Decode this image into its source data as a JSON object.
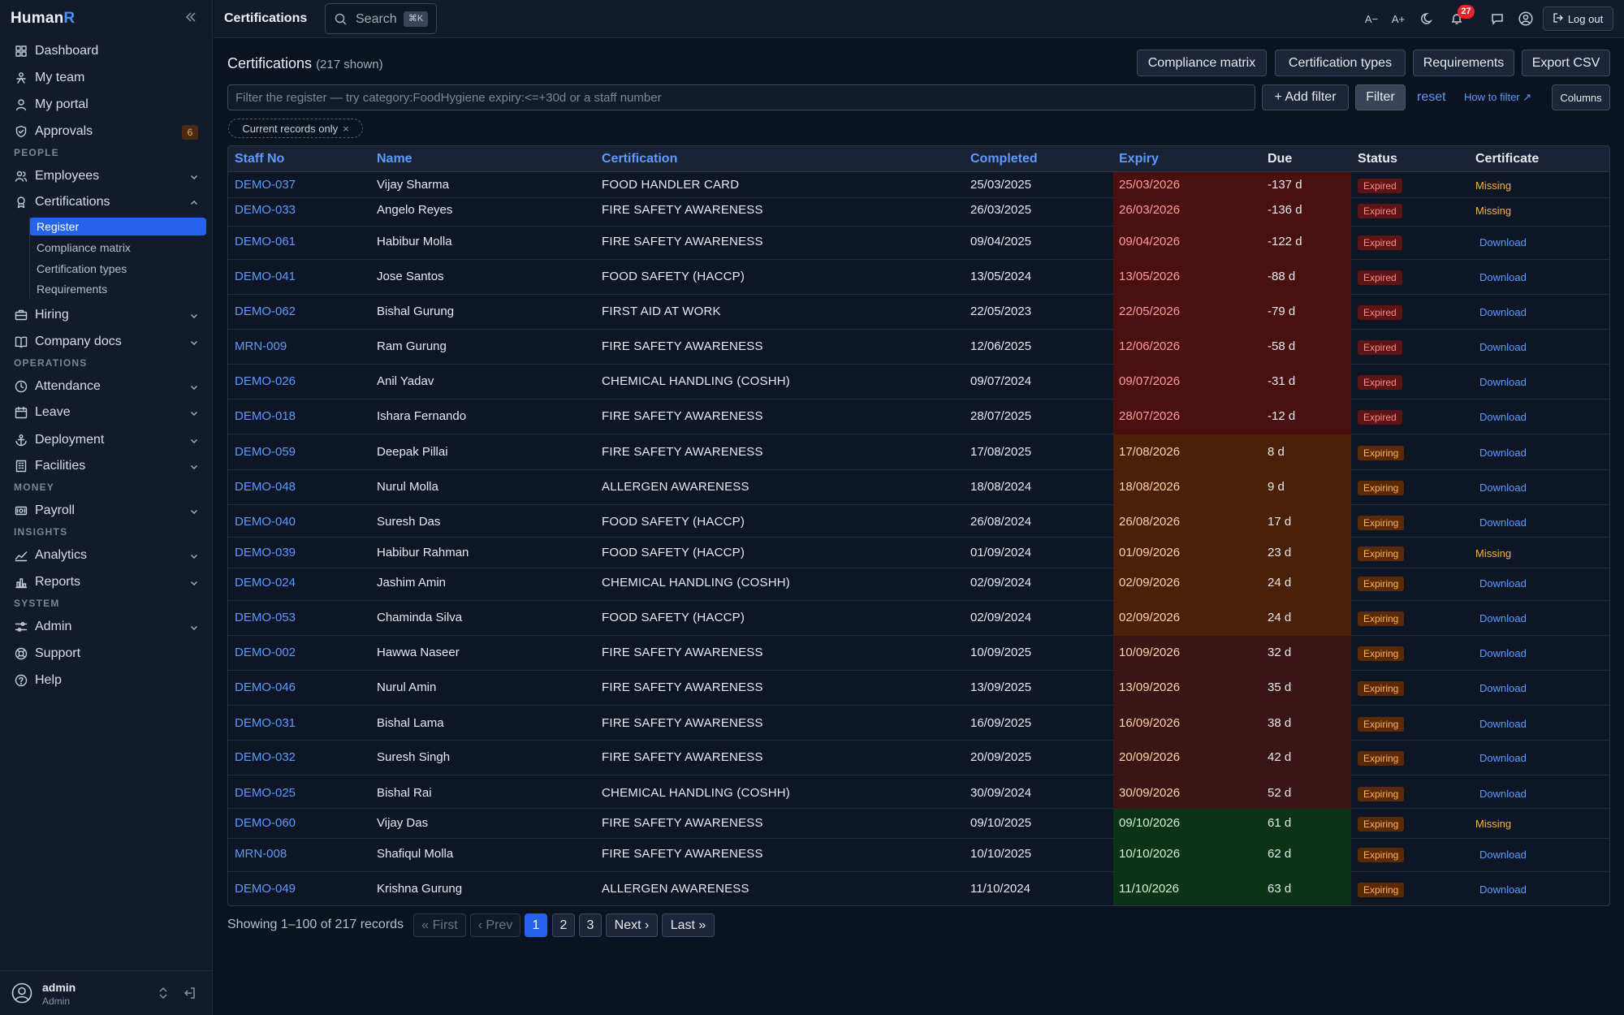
{
  "app": {
    "name": "Human",
    "name_accent": "R"
  },
  "sidebar": {
    "items": [
      {
        "label": "Dashboard",
        "icon": "grid-icon"
      },
      {
        "label": "My team",
        "icon": "team-icon"
      },
      {
        "label": "My portal",
        "icon": "user-icon"
      },
      {
        "label": "Approvals",
        "icon": "shield-check-icon",
        "badge": "6"
      }
    ],
    "people_section": "PEOPLE",
    "people": [
      {
        "label": "Employees",
        "icon": "users-icon"
      },
      {
        "label": "Certifications",
        "icon": "award-icon"
      }
    ],
    "cert_sub": [
      "Register",
      "Compliance matrix",
      "Certification types",
      "Requirements"
    ],
    "more": [
      {
        "label": "Hiring",
        "icon": "briefcase-icon"
      },
      {
        "label": "Company docs",
        "icon": "book-icon"
      }
    ],
    "operations_section": "OPERATIONS",
    "operations": [
      {
        "label": "Attendance",
        "icon": "clock-icon"
      },
      {
        "label": "Leave",
        "icon": "calendar-icon"
      },
      {
        "label": "Deployment",
        "icon": "anchor-icon"
      },
      {
        "label": "Facilities",
        "icon": "building-icon"
      }
    ],
    "money_section": "MONEY",
    "money": [
      {
        "label": "Payroll",
        "icon": "payroll-icon"
      }
    ],
    "insights_section": "INSIGHTS",
    "insights": [
      {
        "label": "Analytics",
        "icon": "trend-icon"
      },
      {
        "label": "Reports",
        "icon": "bar-chart-icon"
      }
    ],
    "system_section": "SYSTEM",
    "system": [
      {
        "label": "Admin",
        "icon": "sliders-icon"
      },
      {
        "label": "Support",
        "icon": "lifebuoy-icon"
      },
      {
        "label": "Help",
        "icon": "help-circle-icon"
      }
    ],
    "user": {
      "name": "admin",
      "role": "Admin"
    }
  },
  "topbar": {
    "title": "Certifications",
    "search_label": "Search",
    "search_kbd": "⌘K",
    "font_minus": "A−",
    "font_plus": "A+",
    "notifications": "27",
    "logout": "Log out"
  },
  "page": {
    "title": "Certifications",
    "shown": "(217 shown)",
    "buttons": [
      "Compliance matrix",
      "Certification types",
      "Requirements",
      "Export CSV"
    ],
    "filter_placeholder": "Filter the register — try category:FoodHygiene expiry:<=+30d or a staff number",
    "add_filter": "+ Add filter",
    "filter": "Filter",
    "reset": "reset",
    "how_to": "How to filter ↗",
    "columns": "Columns",
    "chip": "Current records only",
    "chip_x": "×"
  },
  "table": {
    "headers": [
      "Staff No",
      "Name",
      "Certification",
      "Completed",
      "Expiry",
      "Due",
      "Status",
      "Certificate"
    ],
    "rows": [
      {
        "staff": "DEMO-037",
        "name": "Vijay Sharma",
        "cert": "FOOD HANDLER CARD",
        "completed": "25/03/2025",
        "expiry": "25/03/2026",
        "due": "-137 d",
        "status": "Expired",
        "certificate": "Missing"
      },
      {
        "staff": "DEMO-033",
        "name": "Angelo Reyes",
        "cert": "FIRE SAFETY AWARENESS",
        "completed": "26/03/2025",
        "expiry": "26/03/2026",
        "due": "-136 d",
        "status": "Expired",
        "certificate": "Missing"
      },
      {
        "staff": "DEMO-061",
        "name": "Habibur Molla",
        "cert": "FIRE SAFETY AWARENESS",
        "completed": "09/04/2025",
        "expiry": "09/04/2026",
        "due": "-122 d",
        "status": "Expired",
        "certificate": "Download"
      },
      {
        "staff": "DEMO-041",
        "name": "Jose Santos",
        "cert": "FOOD SAFETY (HACCP)",
        "completed": "13/05/2024",
        "expiry": "13/05/2026",
        "due": "-88 d",
        "status": "Expired",
        "certificate": "Download"
      },
      {
        "staff": "DEMO-062",
        "name": "Bishal Gurung",
        "cert": "FIRST AID AT WORK",
        "completed": "22/05/2023",
        "expiry": "22/05/2026",
        "due": "-79 d",
        "status": "Expired",
        "certificate": "Download"
      },
      {
        "staff": "MRN-009",
        "name": "Ram Gurung",
        "cert": "FIRE SAFETY AWARENESS",
        "completed": "12/06/2025",
        "expiry": "12/06/2026",
        "due": "-58 d",
        "status": "Expired",
        "certificate": "Download"
      },
      {
        "staff": "DEMO-026",
        "name": "Anil Yadav",
        "cert": "CHEMICAL HANDLING (COSHH)",
        "completed": "09/07/2024",
        "expiry": "09/07/2026",
        "due": "-31 d",
        "status": "Expired",
        "certificate": "Download"
      },
      {
        "staff": "DEMO-018",
        "name": "Ishara Fernando",
        "cert": "FIRE SAFETY AWARENESS",
        "completed": "28/07/2025",
        "expiry": "28/07/2026",
        "due": "-12 d",
        "status": "Expired",
        "certificate": "Download"
      },
      {
        "staff": "DEMO-059",
        "name": "Deepak Pillai",
        "cert": "FIRE SAFETY AWARENESS",
        "completed": "17/08/2025",
        "expiry": "17/08/2026",
        "due": "8 d",
        "status": "Expiring",
        "certificate": "Download"
      },
      {
        "staff": "DEMO-048",
        "name": "Nurul Molla",
        "cert": "ALLERGEN AWARENESS",
        "completed": "18/08/2024",
        "expiry": "18/08/2026",
        "due": "9 d",
        "status": "Expiring",
        "certificate": "Download"
      },
      {
        "staff": "DEMO-040",
        "name": "Suresh Das",
        "cert": "FOOD SAFETY (HACCP)",
        "completed": "26/08/2024",
        "expiry": "26/08/2026",
        "due": "17 d",
        "status": "Expiring",
        "certificate": "Download"
      },
      {
        "staff": "DEMO-039",
        "name": "Habibur Rahman",
        "cert": "FOOD SAFETY (HACCP)",
        "completed": "01/09/2024",
        "expiry": "01/09/2026",
        "due": "23 d",
        "status": "Expiring",
        "certificate": "Missing"
      },
      {
        "staff": "DEMO-024",
        "name": "Jashim Amin",
        "cert": "CHEMICAL HANDLING (COSHH)",
        "completed": "02/09/2024",
        "expiry": "02/09/2026",
        "due": "24 d",
        "status": "Expiring",
        "certificate": "Download"
      },
      {
        "staff": "DEMO-053",
        "name": "Chaminda Silva",
        "cert": "FOOD SAFETY (HACCP)",
        "completed": "02/09/2024",
        "expiry": "02/09/2026",
        "due": "24 d",
        "status": "Expiring",
        "certificate": "Download"
      },
      {
        "staff": "DEMO-002",
        "name": "Hawwa Naseer",
        "cert": "FIRE SAFETY AWARENESS",
        "completed": "10/09/2025",
        "expiry": "10/09/2026",
        "due": "32 d",
        "status": "Expiring",
        "certificate": "Download"
      },
      {
        "staff": "DEMO-046",
        "name": "Nurul Amin",
        "cert": "FIRE SAFETY AWARENESS",
        "completed": "13/09/2025",
        "expiry": "13/09/2026",
        "due": "35 d",
        "status": "Expiring",
        "certificate": "Download"
      },
      {
        "staff": "DEMO-031",
        "name": "Bishal Lama",
        "cert": "FIRE SAFETY AWARENESS",
        "completed": "16/09/2025",
        "expiry": "16/09/2026",
        "due": "38 d",
        "status": "Expiring",
        "certificate": "Download"
      },
      {
        "staff": "DEMO-032",
        "name": "Suresh Singh",
        "cert": "FIRE SAFETY AWARENESS",
        "completed": "20/09/2025",
        "expiry": "20/09/2026",
        "due": "42 d",
        "status": "Expiring",
        "certificate": "Download"
      },
      {
        "staff": "DEMO-025",
        "name": "Bishal Rai",
        "cert": "CHEMICAL HANDLING (COSHH)",
        "completed": "30/09/2024",
        "expiry": "30/09/2026",
        "due": "52 d",
        "status": "Expiring",
        "certificate": "Download"
      },
      {
        "staff": "DEMO-060",
        "name": "Vijay Das",
        "cert": "FIRE SAFETY AWARENESS",
        "completed": "09/10/2025",
        "expiry": "09/10/2026",
        "due": "61 d",
        "status": "Expiring",
        "certificate": "Missing"
      },
      {
        "staff": "MRN-008",
        "name": "Shafiqul Molla",
        "cert": "FIRE SAFETY AWARENESS",
        "completed": "10/10/2025",
        "expiry": "10/10/2026",
        "due": "62 d",
        "status": "Expiring",
        "certificate": "Download"
      },
      {
        "staff": "DEMO-049",
        "name": "Krishna Gurung",
        "cert": "ALLERGEN AWARENESS",
        "completed": "11/10/2024",
        "expiry": "11/10/2026",
        "due": "63 d",
        "status": "Expiring",
        "certificate": "Download"
      }
    ]
  },
  "pagination": {
    "summary": "Showing 1–100 of 217 records",
    "first": "« First",
    "prev": "‹ Prev",
    "pages": [
      "1",
      "2",
      "3"
    ],
    "next": "Next ›",
    "last": "Last »"
  },
  "colors": {
    "accent": "#2563eb",
    "link": "#5b9bff",
    "expired_bg": "#4a0f0f",
    "expiring_bg": "#4a2008",
    "near_bg": "#3a1515",
    "ok_bg": "#0d3317"
  }
}
